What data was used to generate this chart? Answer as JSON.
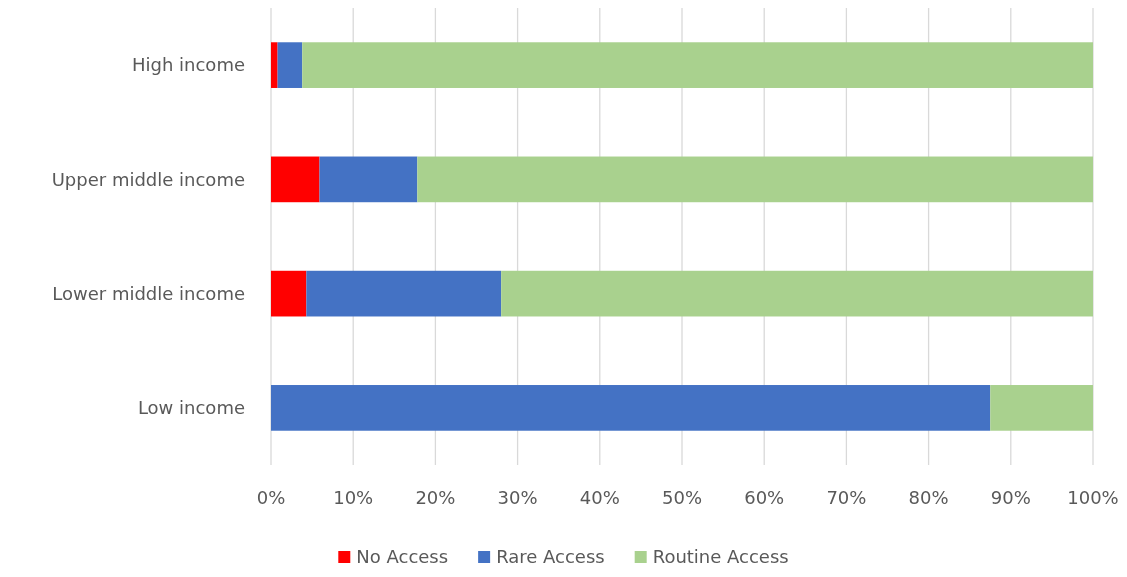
{
  "chart_data": {
    "type": "bar",
    "orientation": "horizontal",
    "stacked": true,
    "categories": [
      "High income",
      "Upper middle income",
      "Lower middle income",
      "Low income"
    ],
    "series": [
      {
        "name": "No Access",
        "color": "#ff0000",
        "values": [
          0.8,
          5.9,
          4.3,
          0
        ]
      },
      {
        "name": "Rare Access",
        "color": "#4472c4",
        "values": [
          3.0,
          11.9,
          23.7,
          87.5
        ]
      },
      {
        "name": "Routine Access",
        "color": "#a9d18e",
        "values": [
          96.2,
          82.2,
          72.0,
          12.5
        ]
      }
    ],
    "xlim": [
      0,
      100
    ],
    "xticks": [
      {
        "value": 0,
        "label": "0%"
      },
      {
        "value": 10,
        "label": "10%"
      },
      {
        "value": 20,
        "label": "20%"
      },
      {
        "value": 30,
        "label": "30%"
      },
      {
        "value": 40,
        "label": "40%"
      },
      {
        "value": 50,
        "label": "50%"
      },
      {
        "value": 60,
        "label": "60%"
      },
      {
        "value": 70,
        "label": "70%"
      },
      {
        "value": 80,
        "label": "80%"
      },
      {
        "value": 90,
        "label": "90%"
      },
      {
        "value": 100,
        "label": "100%"
      }
    ],
    "grid": "x",
    "legend": "bottom"
  }
}
